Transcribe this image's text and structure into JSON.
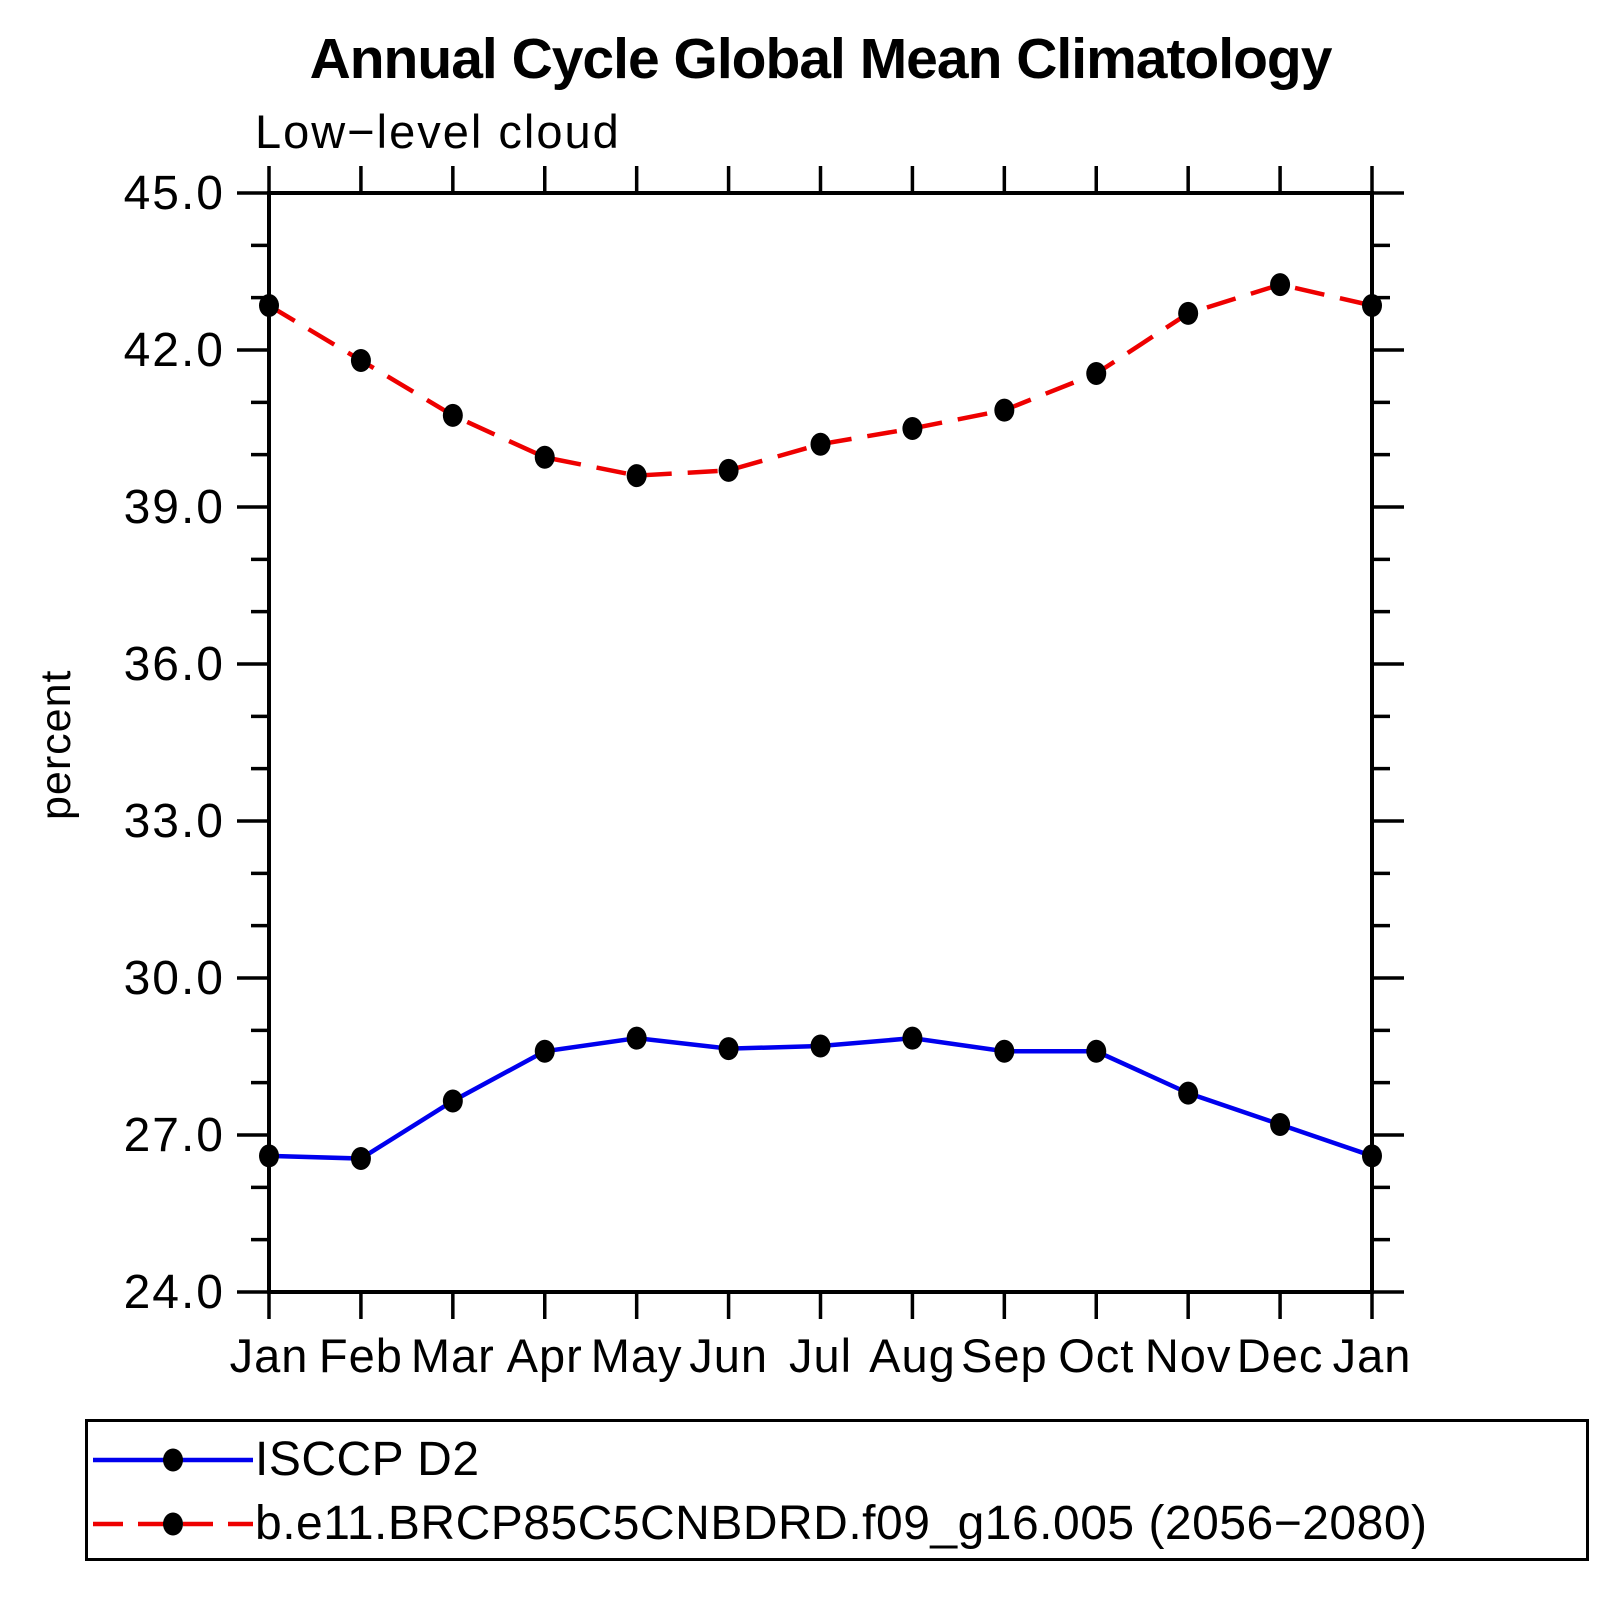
{
  "chart_data": {
    "type": "line",
    "title": "Annual Cycle Global Mean Climatology",
    "subtitle": "Low−level cloud",
    "ylabel": "percent",
    "xlabel": "",
    "categories": [
      "Jan",
      "Feb",
      "Mar",
      "Apr",
      "May",
      "Jun",
      "Jul",
      "Aug",
      "Sep",
      "Oct",
      "Nov",
      "Dec",
      "Jan"
    ],
    "ylim": [
      24.0,
      45.0
    ],
    "ytick_major_interval": 3.0,
    "ytick_minor_interval": 1.0,
    "ytick_labels": [
      "24.0",
      "27.0",
      "30.0",
      "33.0",
      "36.0",
      "39.0",
      "42.0",
      "45.0"
    ],
    "grid": false,
    "legend_position": "bottom-left",
    "axis_color": "#000000",
    "marker_color": "#000000",
    "series": [
      {
        "name": "ISCCP D2",
        "color": "#0000ee",
        "line_style": "solid",
        "marker": "filled-circle",
        "values": [
          26.6,
          26.55,
          27.65,
          28.6,
          28.85,
          28.65,
          28.7,
          28.85,
          28.6,
          28.6,
          27.8,
          27.2,
          26.6
        ]
      },
      {
        "name": "b.e11.BRCP85C5CNBDRD.f09_g16.005 (2056−2080)",
        "color": "#ee0000",
        "line_style": "dashed",
        "marker": "filled-circle",
        "values": [
          42.85,
          41.8,
          40.75,
          39.95,
          39.6,
          39.7,
          40.2,
          40.5,
          40.85,
          41.55,
          42.7,
          43.25,
          42.85
        ]
      }
    ]
  }
}
